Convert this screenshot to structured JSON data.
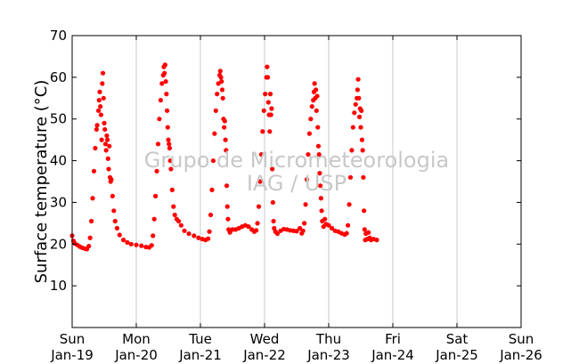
{
  "chart_data": {
    "type": "scatter",
    "title": "",
    "ylabel": "Surface temperature (°C)",
    "xlabel": "",
    "xlim": [
      0,
      7
    ],
    "ylim": [
      0,
      70
    ],
    "y_ticks": [
      10,
      20,
      30,
      40,
      50,
      60,
      70
    ],
    "x_ticks": [
      {
        "x": 0,
        "day": "Sun",
        "date": "Jan-19"
      },
      {
        "x": 1,
        "day": "Mon",
        "date": "Jan-20"
      },
      {
        "x": 2,
        "day": "Tue",
        "date": "Jan-21"
      },
      {
        "x": 3,
        "day": "Wed",
        "date": "Jan-22"
      },
      {
        "x": 4,
        "day": "Thu",
        "date": "Jan-23"
      },
      {
        "x": 5,
        "day": "Fri",
        "date": "Jan-24"
      },
      {
        "x": 6,
        "day": "Sat",
        "date": "Jan-25"
      },
      {
        "x": 7,
        "day": "Sun",
        "date": "Jan-26"
      }
    ],
    "x_units": "days from Jan-19 00:00",
    "grid": "vertical",
    "marker_color": "#ff0000",
    "series": [
      {
        "points": [
          [
            0.0,
            22.0
          ],
          [
            0.02,
            20.8
          ],
          [
            0.04,
            20.2
          ],
          [
            0.08,
            19.8
          ],
          [
            0.12,
            19.4
          ],
          [
            0.16,
            19.1
          ],
          [
            0.2,
            18.9
          ],
          [
            0.23,
            18.8
          ],
          [
            0.26,
            19.5
          ],
          [
            0.28,
            21.5
          ],
          [
            0.3,
            25.5
          ],
          [
            0.32,
            31.0
          ],
          [
            0.34,
            37.5
          ],
          [
            0.36,
            43.0
          ],
          [
            0.38,
            47.5
          ],
          [
            0.39,
            48.5
          ],
          [
            0.41,
            52.0
          ],
          [
            0.42,
            54.5
          ],
          [
            0.43,
            56.5
          ],
          [
            0.44,
            53.0
          ],
          [
            0.45,
            51.0
          ],
          [
            0.46,
            45.0
          ],
          [
            0.47,
            58.5
          ],
          [
            0.48,
            61.0
          ],
          [
            0.49,
            55.0
          ],
          [
            0.5,
            49.0
          ],
          [
            0.51,
            47.5
          ],
          [
            0.52,
            44.0
          ],
          [
            0.53,
            42.5
          ],
          [
            0.54,
            46.0
          ],
          [
            0.55,
            45.0
          ],
          [
            0.56,
            40.5
          ],
          [
            0.57,
            38.0
          ],
          [
            0.58,
            43.5
          ],
          [
            0.59,
            36.0
          ],
          [
            0.6,
            35.0
          ],
          [
            0.61,
            35.5
          ],
          [
            0.63,
            31.5
          ],
          [
            0.65,
            28.0
          ],
          [
            0.67,
            25.5
          ],
          [
            0.7,
            23.8
          ],
          [
            0.74,
            22.2
          ],
          [
            0.8,
            21.0
          ],
          [
            0.86,
            20.4
          ],
          [
            0.92,
            20.0
          ],
          [
            1.0,
            19.8
          ],
          [
            1.08,
            19.6
          ],
          [
            1.15,
            19.3
          ],
          [
            1.2,
            19.2
          ],
          [
            1.24,
            19.7
          ],
          [
            1.26,
            22.0
          ],
          [
            1.28,
            26.0
          ],
          [
            1.3,
            31.5
          ],
          [
            1.32,
            37.5
          ],
          [
            1.34,
            44.0
          ],
          [
            1.36,
            50.0
          ],
          [
            1.38,
            54.5
          ],
          [
            1.4,
            58.5
          ],
          [
            1.42,
            60.5
          ],
          [
            1.43,
            62.5
          ],
          [
            1.44,
            61.0
          ],
          [
            1.45,
            63.0
          ],
          [
            1.46,
            59.0
          ],
          [
            1.47,
            56.0
          ],
          [
            1.48,
            52.0
          ],
          [
            1.49,
            48.0
          ],
          [
            1.5,
            45.0
          ],
          [
            1.51,
            44.0
          ],
          [
            1.52,
            43.0
          ],
          [
            1.53,
            40.0
          ],
          [
            1.54,
            38.0
          ],
          [
            1.56,
            33.0
          ],
          [
            1.58,
            29.0
          ],
          [
            1.6,
            27.0
          ],
          [
            1.63,
            26.0
          ],
          [
            1.66,
            25.5
          ],
          [
            1.7,
            24.5
          ],
          [
            1.75,
            23.2
          ],
          [
            1.82,
            22.5
          ],
          [
            1.9,
            22.0
          ],
          [
            1.97,
            21.5
          ],
          [
            2.03,
            21.2
          ],
          [
            2.08,
            21.0
          ],
          [
            2.12,
            21.3
          ],
          [
            2.14,
            23.0
          ],
          [
            2.16,
            27.0
          ],
          [
            2.18,
            33.0
          ],
          [
            2.2,
            40.0
          ],
          [
            2.22,
            46.5
          ],
          [
            2.24,
            52.0
          ],
          [
            2.26,
            56.0
          ],
          [
            2.28,
            58.5
          ],
          [
            2.3,
            60.5
          ],
          [
            2.31,
            61.5
          ],
          [
            2.32,
            60.0
          ],
          [
            2.33,
            59.0
          ],
          [
            2.34,
            57.0
          ],
          [
            2.35,
            55.0
          ],
          [
            2.36,
            50.0
          ],
          [
            2.37,
            48.0
          ],
          [
            2.38,
            49.5
          ],
          [
            2.39,
            45.0
          ],
          [
            2.4,
            42.5
          ],
          [
            2.41,
            34.0
          ],
          [
            2.42,
            29.0
          ],
          [
            2.43,
            26.0
          ],
          [
            2.44,
            23.5
          ],
          [
            2.46,
            22.8
          ],
          [
            2.5,
            23.5
          ],
          [
            2.55,
            23.5
          ],
          [
            2.6,
            23.8
          ],
          [
            2.65,
            24.2
          ],
          [
            2.7,
            24.5
          ],
          [
            2.75,
            24.2
          ],
          [
            2.8,
            23.5
          ],
          [
            2.84,
            23.0
          ],
          [
            2.87,
            23.3
          ],
          [
            2.89,
            25.0
          ],
          [
            2.91,
            29.0
          ],
          [
            2.93,
            35.0
          ],
          [
            2.95,
            41.5
          ],
          [
            2.97,
            47.0
          ],
          [
            2.99,
            52.0
          ],
          [
            3.01,
            56.0
          ],
          [
            3.03,
            60.0
          ],
          [
            3.04,
            62.5
          ],
          [
            3.05,
            60.0
          ],
          [
            3.06,
            54.0
          ],
          [
            3.07,
            51.0
          ],
          [
            3.08,
            47.0
          ],
          [
            3.09,
            56.0
          ],
          [
            3.1,
            51.0
          ],
          [
            3.11,
            52.5
          ],
          [
            3.12,
            38.0
          ],
          [
            3.13,
            30.0
          ],
          [
            3.14,
            25.5
          ],
          [
            3.15,
            23.8
          ],
          [
            3.17,
            23.0
          ],
          [
            3.2,
            22.5
          ],
          [
            3.25,
            23.2
          ],
          [
            3.3,
            23.6
          ],
          [
            3.35,
            23.5
          ],
          [
            3.4,
            23.3
          ],
          [
            3.45,
            23.2
          ],
          [
            3.5,
            23.1
          ],
          [
            3.55,
            23.8
          ],
          [
            3.58,
            22.6
          ],
          [
            3.6,
            23.2
          ],
          [
            3.62,
            25.0
          ],
          [
            3.64,
            29.5
          ],
          [
            3.66,
            35.5
          ],
          [
            3.68,
            41.5
          ],
          [
            3.7,
            46.5
          ],
          [
            3.72,
            50.0
          ],
          [
            3.74,
            53.0
          ],
          [
            3.76,
            54.5
          ],
          [
            3.77,
            56.5
          ],
          [
            3.78,
            58.5
          ],
          [
            3.79,
            55.0
          ],
          [
            3.8,
            57.0
          ],
          [
            3.81,
            52.0
          ],
          [
            3.82,
            55.5
          ],
          [
            3.83,
            48.0
          ],
          [
            3.84,
            43.5
          ],
          [
            3.85,
            41.5
          ],
          [
            3.86,
            37.0
          ],
          [
            3.87,
            34.0
          ],
          [
            3.88,
            31.0
          ],
          [
            3.89,
            28.0
          ],
          [
            3.9,
            25.5
          ],
          [
            3.92,
            24.2
          ],
          [
            3.94,
            26.0
          ],
          [
            3.96,
            24.8
          ],
          [
            4.0,
            24.5
          ],
          [
            4.05,
            23.8
          ],
          [
            4.1,
            23.2
          ],
          [
            4.15,
            23.0
          ],
          [
            4.2,
            22.6
          ],
          [
            4.25,
            22.3
          ],
          [
            4.28,
            22.6
          ],
          [
            4.3,
            24.5
          ],
          [
            4.32,
            29.5
          ],
          [
            4.34,
            36.0
          ],
          [
            4.36,
            42.5
          ],
          [
            4.38,
            48.0
          ],
          [
            4.4,
            51.5
          ],
          [
            4.42,
            53.5
          ],
          [
            4.44,
            55.0
          ],
          [
            4.45,
            57.0
          ],
          [
            4.46,
            59.5
          ],
          [
            4.47,
            55.0
          ],
          [
            4.48,
            50.5
          ],
          [
            4.49,
            52.5
          ],
          [
            4.5,
            48.0
          ],
          [
            4.51,
            52.0
          ],
          [
            4.52,
            45.0
          ],
          [
            4.53,
            42.5
          ],
          [
            4.54,
            36.0
          ],
          [
            4.55,
            28.0
          ],
          [
            4.56,
            23.5
          ],
          [
            4.57,
            21.0
          ],
          [
            4.58,
            22.5
          ],
          [
            4.6,
            21.2
          ],
          [
            4.62,
            22.8
          ],
          [
            4.64,
            21.5
          ],
          [
            4.66,
            21.0
          ],
          [
            4.7,
            21.2
          ],
          [
            4.75,
            21.0
          ]
        ]
      }
    ]
  },
  "watermark": {
    "line1": "Grupo de Micrometeorologia",
    "line2": "IAG / USP"
  }
}
